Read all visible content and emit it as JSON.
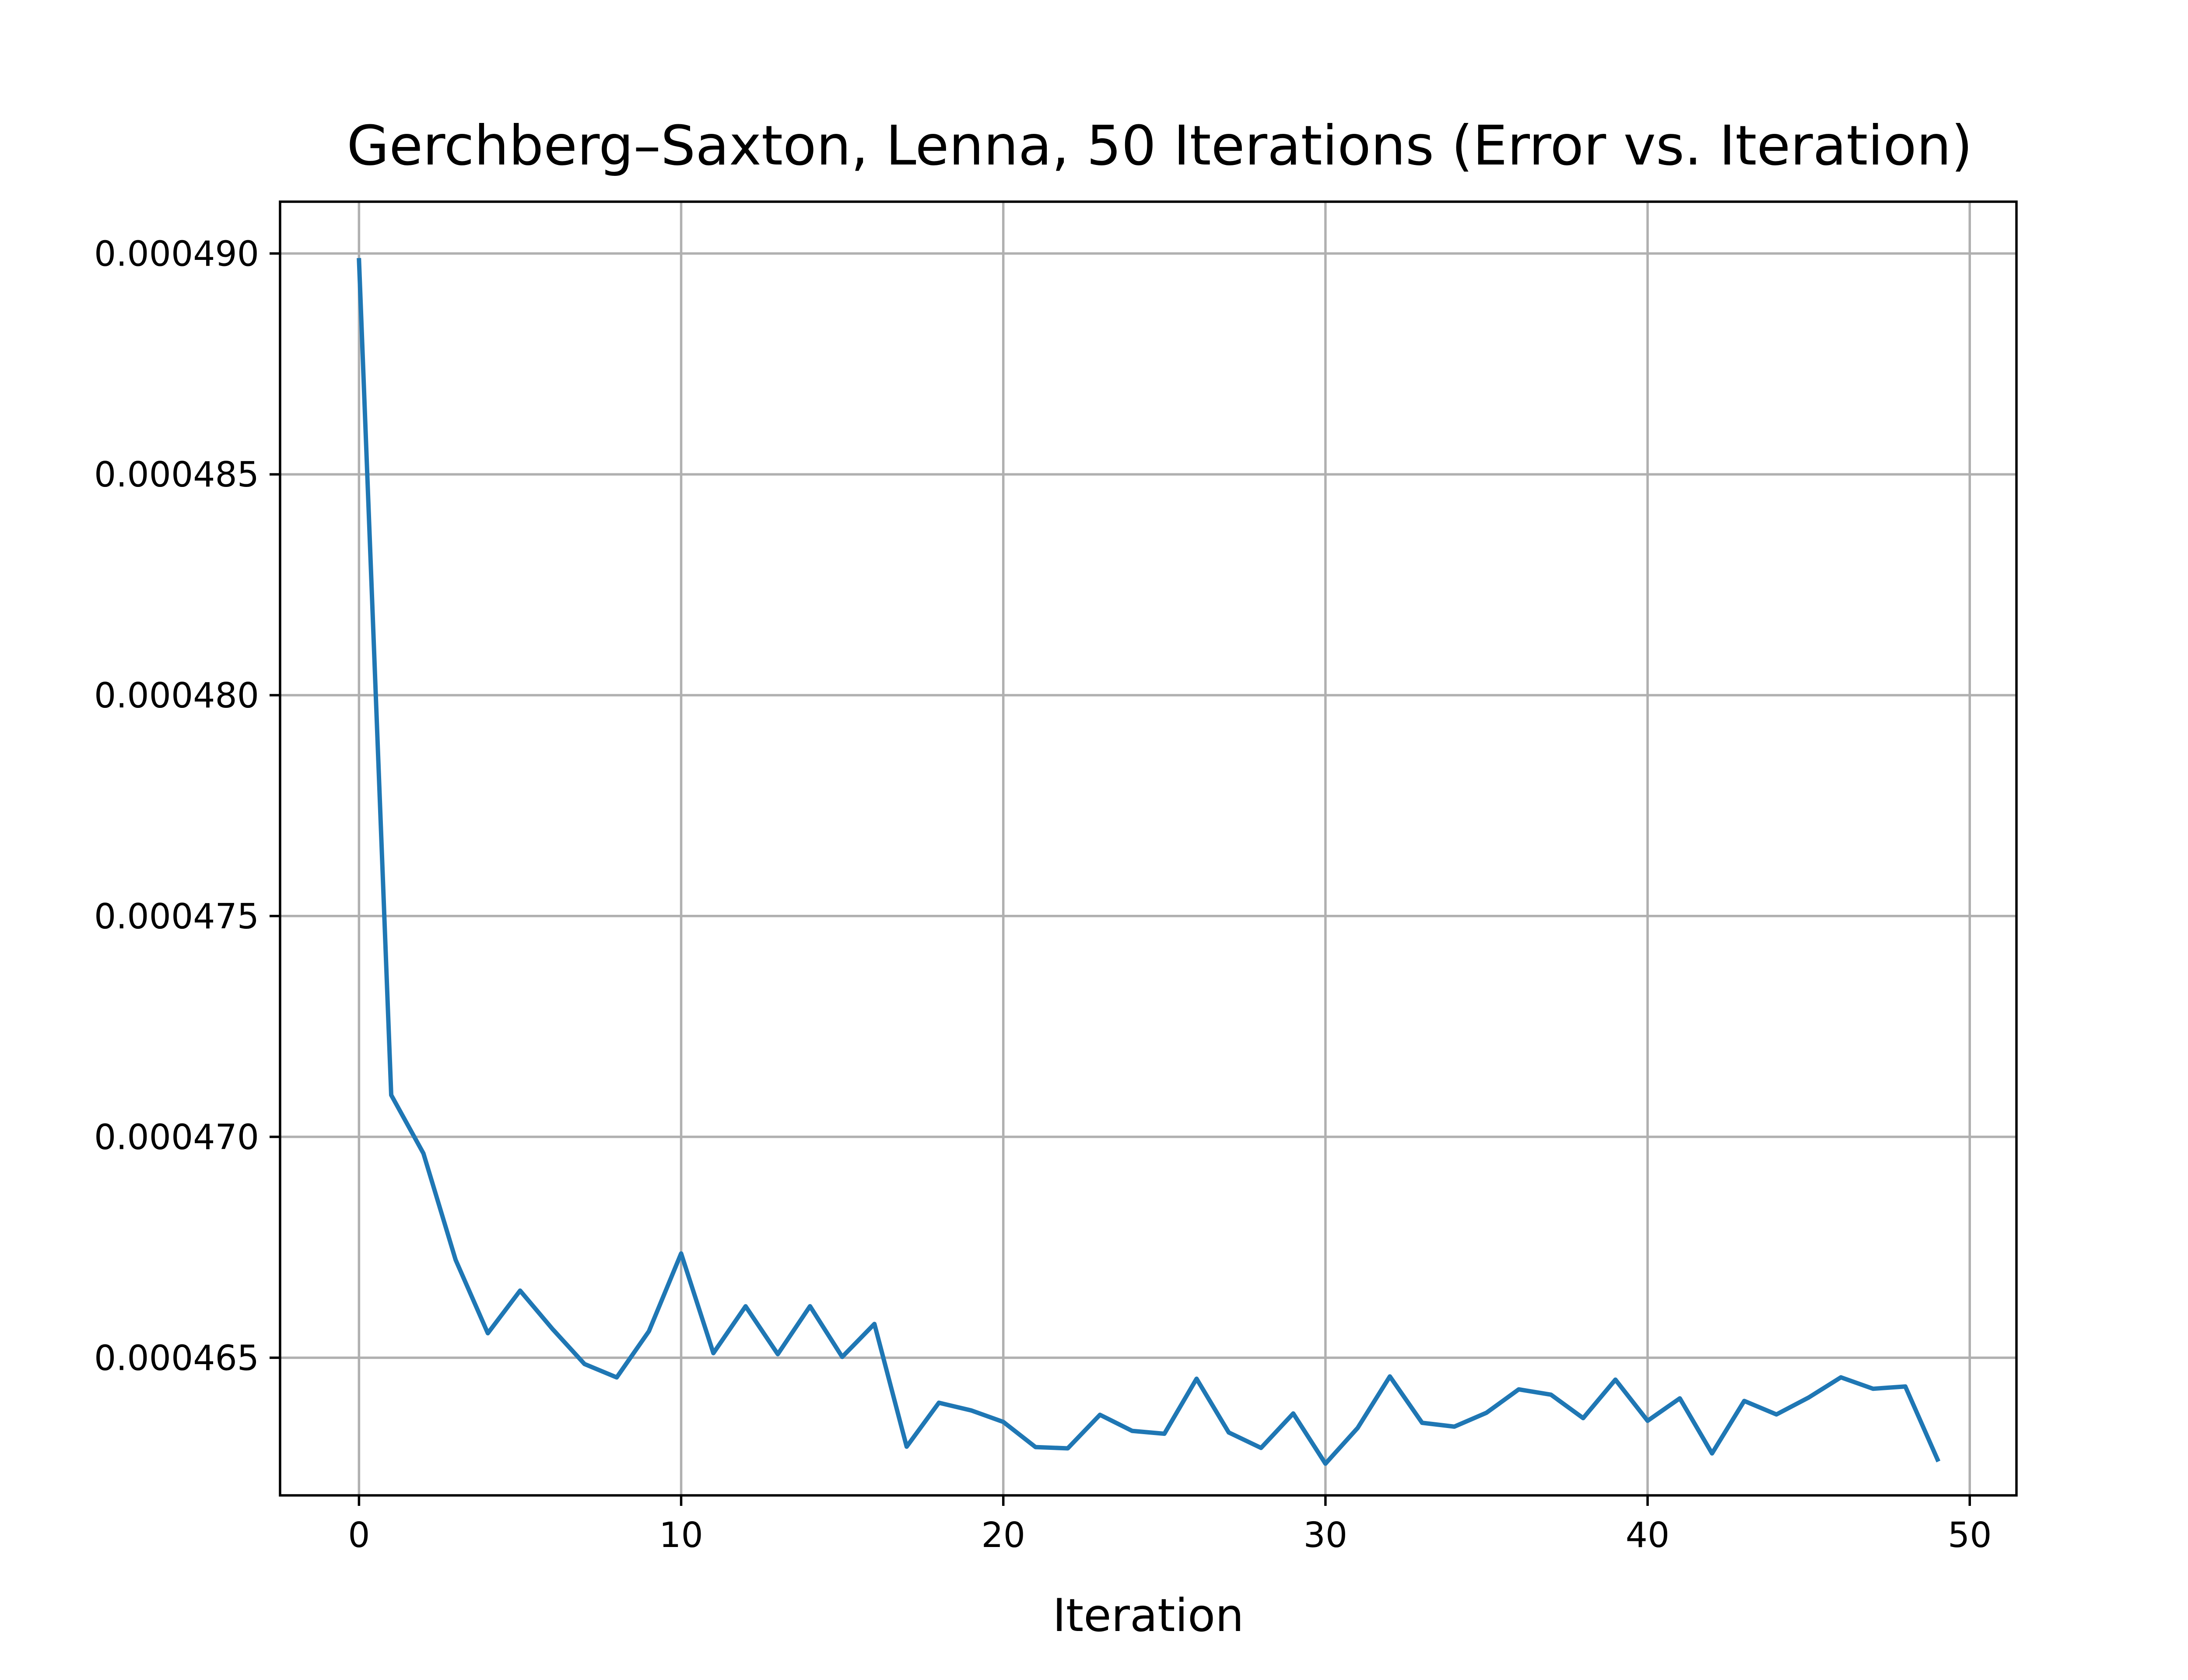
{
  "chart_data": {
    "type": "line",
    "title": "Gerchberg–Saxton, Lenna, 50 Iterations (Error vs. Iteration)",
    "xlabel": "Iteration",
    "ylabel": "",
    "xlim": [
      -2.45,
      51.45
    ],
    "ylim": [
      0.000461883,
      0.000491173
    ],
    "xticks": [
      0,
      10,
      20,
      30,
      40,
      50
    ],
    "xtick_labels": [
      "0",
      "10",
      "20",
      "30",
      "40",
      "50"
    ],
    "yticks": [
      0.000465,
      0.00047,
      0.000475,
      0.00048,
      0.000485,
      0.00049
    ],
    "ytick_labels": [
      "0.000465",
      "0.000470",
      "0.000475",
      "0.000480",
      "0.000485",
      "0.000490"
    ],
    "grid": true,
    "legend": "none",
    "series": [
      {
        "color": "#1f77b4",
        "x": [
          0,
          1,
          2,
          3,
          4,
          5,
          6,
          7,
          8,
          9,
          10,
          11,
          12,
          13,
          14,
          15,
          16,
          17,
          18,
          19,
          20,
          21,
          22,
          23,
          24,
          25,
          26,
          27,
          28,
          29,
          30,
          31,
          32,
          33,
          34,
          35,
          36,
          37,
          38,
          39,
          40,
          41,
          42,
          43,
          44,
          45,
          46,
          47,
          48,
          49
        ],
        "y": [
          0.000489848,
          0.000470947,
          0.000469626,
          0.000467215,
          0.000465554,
          0.000466519,
          0.000465655,
          0.000464857,
          0.000464553,
          0.000465599,
          0.00046736,
          0.000465103,
          0.000466164,
          0.00046508,
          0.000466166,
          0.000465018,
          0.000465765,
          0.000462985,
          0.00046398,
          0.000463808,
          0.000463546,
          0.000462977,
          0.000462948,
          0.000463708,
          0.000463343,
          0.000463279,
          0.000464524,
          0.000463306,
          0.000462958,
          0.000463737,
          0.000462601,
          0.000463409,
          0.000464576,
          0.000463526,
          0.000463439,
          0.000463754,
          0.000464283,
          0.000464163,
          0.000463632,
          0.000464503,
          0.000463572,
          0.00046408,
          0.000462833,
          0.000464022,
          0.000463715,
          0.000464099,
          0.000464555,
          0.000464297,
          0.000464348,
          0.000462695
        ]
      }
    ]
  }
}
